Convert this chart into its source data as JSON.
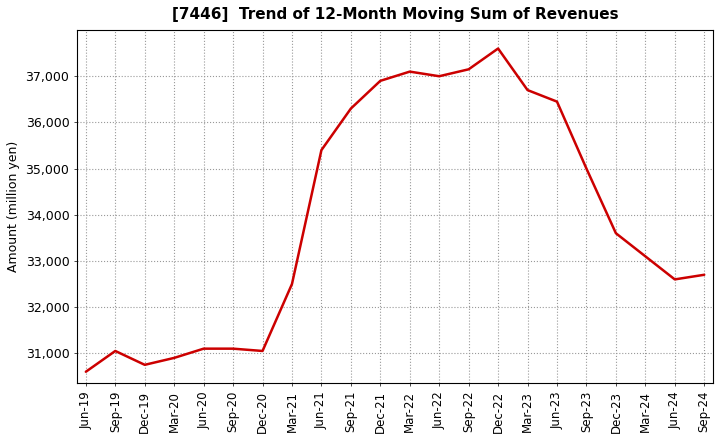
{
  "title": "[7446]  Trend of 12-Month Moving Sum of Revenues",
  "ylabel": "Amount (million yen)",
  "line_color": "#cc0000",
  "background_color": "#ffffff",
  "plot_bg_color": "#ffffff",
  "grid_color": "#999999",
  "x_labels": [
    "Jun-19",
    "Sep-19",
    "Dec-19",
    "Mar-20",
    "Jun-20",
    "Sep-20",
    "Dec-20",
    "Mar-21",
    "Jun-21",
    "Sep-21",
    "Dec-21",
    "Mar-22",
    "Jun-22",
    "Sep-22",
    "Dec-22",
    "Mar-23",
    "Jun-23",
    "Sep-23",
    "Dec-23",
    "Mar-24",
    "Jun-24",
    "Sep-24"
  ],
  "values": [
    30600,
    31050,
    30750,
    30900,
    31100,
    31100,
    31050,
    32500,
    35400,
    36300,
    36900,
    37100,
    37000,
    37150,
    37600,
    36700,
    36450,
    35000,
    33600,
    33100,
    32600,
    32700
  ],
  "ylim": [
    30350,
    38000
  ],
  "yticks": [
    31000,
    32000,
    33000,
    34000,
    35000,
    36000,
    37000
  ]
}
